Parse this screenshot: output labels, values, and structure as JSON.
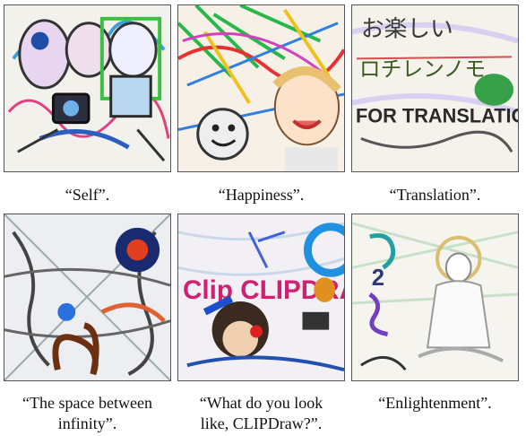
{
  "figure": {
    "panels": [
      {
        "caption": "“Self”.",
        "drawn_text": ""
      },
      {
        "caption": "“Happiness”.",
        "drawn_text": ""
      },
      {
        "caption": "“Translation”.",
        "drawn_text": "FOR TRANSLATION"
      },
      {
        "caption": "“The space between\ninfinity”.",
        "drawn_text": ""
      },
      {
        "caption": "“What do you look\nlike, CLIPDraw?”.",
        "drawn_text": "Clip CLIPDRAW"
      },
      {
        "caption": "“Enlightenment”.",
        "drawn_text": ""
      }
    ]
  }
}
